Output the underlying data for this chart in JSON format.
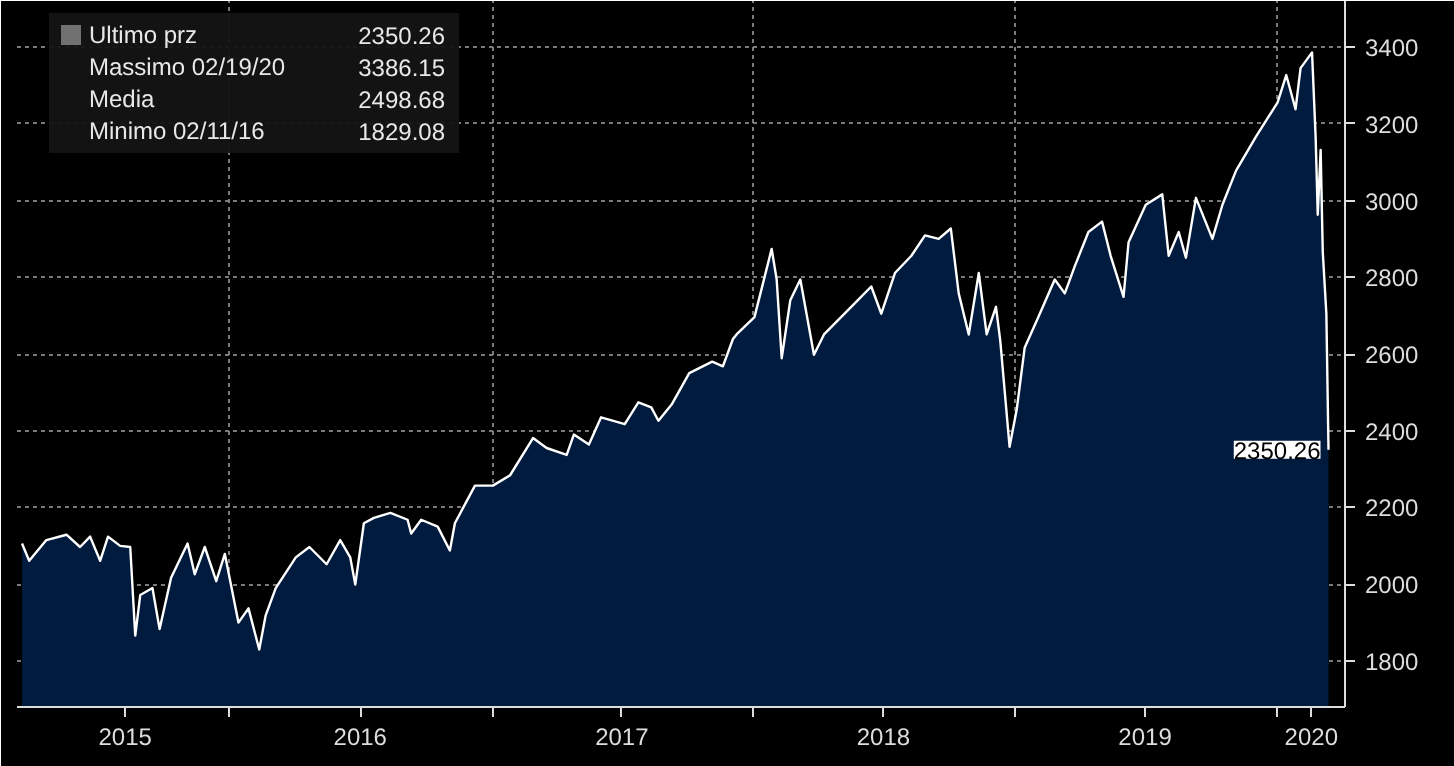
{
  "chart_data": {
    "type": "area",
    "series": [
      {
        "name": "Ultimo prz",
        "color": "#ffffff",
        "x": [
          "2015-03-17",
          "2015-03-27",
          "2015-04-20",
          "2015-05-18",
          "2015-06-06",
          "2015-06-20",
          "2015-07-04",
          "2015-07-15",
          "2015-08-01",
          "2015-08-15",
          "2015-08-22",
          "2015-08-29",
          "2015-09-15",
          "2015-09-25",
          "2015-10-11",
          "2015-11-03",
          "2015-11-13",
          "2015-11-27",
          "2015-12-13",
          "2015-12-25",
          "2016-01-13",
          "2016-01-27",
          "2016-02-11",
          "2016-02-20",
          "2016-03-05",
          "2016-04-02",
          "2016-04-21",
          "2016-05-15",
          "2016-06-03",
          "2016-06-17",
          "2016-06-24",
          "2016-07-06",
          "2016-07-20",
          "2016-08-12",
          "2016-09-05",
          "2016-09-10",
          "2016-09-24",
          "2016-10-17",
          "2016-11-03",
          "2016-11-10",
          "2016-12-08",
          "2017-01-02",
          "2017-01-26",
          "2017-02-27",
          "2017-03-18",
          "2017-04-15",
          "2017-04-25",
          "2017-05-16",
          "2017-06-02",
          "2017-07-05",
          "2017-07-24",
          "2017-08-11",
          "2017-08-21",
          "2017-09-09",
          "2017-10-03",
          "2017-11-04",
          "2017-11-19",
          "2017-12-03",
          "2017-12-08",
          "2018-01-02",
          "2018-01-26",
          "2018-02-02",
          "2018-02-09",
          "2018-02-21",
          "2018-03-07",
          "2018-03-26",
          "2018-04-09",
          "2018-04-28",
          "2018-05-26",
          "2018-06-14",
          "2018-06-28",
          "2018-07-17",
          "2018-08-09",
          "2018-08-28",
          "2018-09-16",
          "2018-10-03",
          "2018-10-14",
          "2018-10-28",
          "2018-11-11",
          "2018-11-22",
          "2018-12-05",
          "2018-12-11",
          "2018-12-24",
          "2019-01-03",
          "2019-01-14",
          "2019-02-02",
          "2019-02-25",
          "2019-03-11",
          "2019-03-25",
          "2019-04-13",
          "2019-05-02",
          "2019-05-14",
          "2019-06-01",
          "2019-06-08",
          "2019-07-02",
          "2019-07-25",
          "2019-08-03",
          "2019-08-17",
          "2019-08-27",
          "2019-09-10",
          "2019-10-03",
          "2019-10-17",
          "2019-11-05",
          "2019-12-03",
          "2020-01-02",
          "2020-01-14",
          "2020-01-27",
          "2020-02-03",
          "2020-02-19",
          "2020-02-24",
          "2020-02-27",
          "2020-03-02",
          "2020-03-05",
          "2020-03-10",
          "2020-03-13"
        ],
        "values": [
          2106,
          2061,
          2115,
          2129,
          2097,
          2124,
          2061,
          2124,
          2100,
          2097,
          1866,
          1972,
          1990,
          1883,
          2017,
          2106,
          2026,
          2097,
          2008,
          2079,
          1900,
          1937,
          1830,
          1919,
          1990,
          2070,
          2097,
          2052,
          2115,
          2070,
          1999,
          2159,
          2173,
          2186,
          2168,
          2132,
          2168,
          2150,
          2088,
          2159,
          2257,
          2257,
          2284,
          2381,
          2355,
          2337,
          2390,
          2364,
          2435,
          2417,
          2474,
          2461,
          2426,
          2470,
          2550,
          2580,
          2568,
          2639,
          2651,
          2696,
          2874,
          2794,
          2589,
          2740,
          2794,
          2598,
          2651,
          2687,
          2740,
          2776,
          2705,
          2811,
          2856,
          2909,
          2900,
          2927,
          2758,
          2651,
          2811,
          2651,
          2723,
          2634,
          2358,
          2456,
          2616,
          2696,
          2794,
          2758,
          2829,
          2918,
          2945,
          2856,
          2749,
          2891,
          2989,
          3016,
          2856,
          2918,
          2851,
          3007,
          2900,
          2989,
          3078,
          3167,
          3256,
          3327,
          3238,
          3345,
          3386,
          3167,
          2963,
          3132,
          2865,
          2705,
          2350.26
        ]
      }
    ],
    "xlim": [
      "2015-03-10",
      "2020-04-05"
    ],
    "xticks": [
      {
        "value": "2015-08-08",
        "label": "2015"
      },
      {
        "value": "2016-01-01",
        "label": null
      },
      {
        "value": "2016-07-01",
        "label": "2016"
      },
      {
        "value": "2017-01-01",
        "label": null
      },
      {
        "value": "2017-07-01",
        "label": "2017"
      },
      {
        "value": "2018-01-01",
        "label": null
      },
      {
        "value": "2018-07-01",
        "label": "2018"
      },
      {
        "value": "2019-01-01",
        "label": null
      },
      {
        "value": "2019-07-01",
        "label": "2019"
      },
      {
        "value": "2020-01-01",
        "label": null
      },
      {
        "value": "2020-02-18",
        "label": "2020"
      }
    ],
    "ylim": [
      1680,
      3520
    ],
    "yticks": [
      1800,
      2000,
      2200,
      2400,
      2600,
      2800,
      3000,
      3200,
      3400
    ],
    "grid": true,
    "legend": "top left",
    "annotations": [
      "2350.26",
      "Massimo 02/19/20",
      "3386.15",
      "Media",
      "2498.68",
      "Minimo 02/11/16",
      "1829.08",
      {
        "text": "2350.26",
        "x": "2020-03-13",
        "y": 2350.26
      }
    ]
  }
}
